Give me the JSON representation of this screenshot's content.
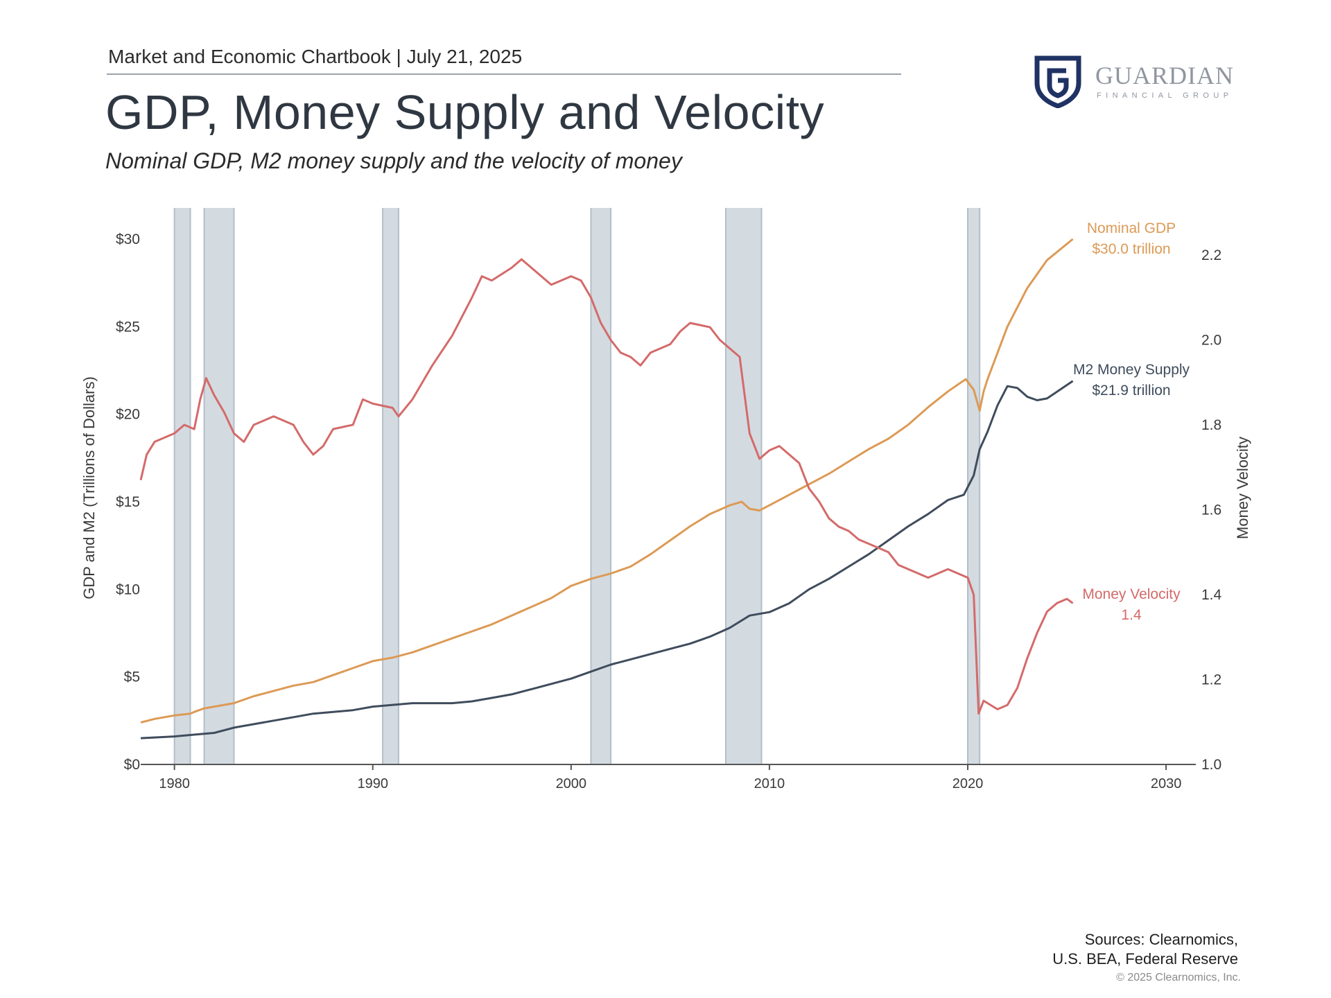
{
  "header": {
    "chartbook": "Market and Economic Chartbook | July 21, 2025",
    "title": "GDP, Money Supply and Velocity",
    "subtitle": "Nominal GDP, M2 money supply and the velocity of money"
  },
  "logo": {
    "name": "GUARDIAN",
    "tagline": "FINANCIAL GROUP"
  },
  "footer": {
    "sources_line1": "Sources: Clearnomics,",
    "sources_line2": "U.S. BEA, Federal Reserve",
    "copyright": "© 2025 Clearnomics, Inc."
  },
  "chart_data": {
    "type": "line",
    "xlim": [
      1978.3,
      2031.5
    ],
    "x_ticks": [
      1980,
      1990,
      2000,
      2010,
      2020,
      2030
    ],
    "ylabel_left": "GDP and M2 (Trillions of Dollars)",
    "ylabel_right": "Money Velocity",
    "ylim_left": [
      0,
      30
    ],
    "ylim_right": [
      1.0,
      2.2
    ],
    "y_ticks_left": [
      {
        "value": 0,
        "label": "$0"
      },
      {
        "value": 5,
        "label": "$5"
      },
      {
        "value": 10,
        "label": "$10"
      },
      {
        "value": 15,
        "label": "$15"
      },
      {
        "value": 20,
        "label": "$20"
      },
      {
        "value": 25,
        "label": "$25"
      },
      {
        "value": 30,
        "label": "$30"
      }
    ],
    "y_ticks_right": [
      {
        "value": 1.0,
        "label": "1.0"
      },
      {
        "value": 1.2,
        "label": "1.2"
      },
      {
        "value": 1.4,
        "label": "1.4"
      },
      {
        "value": 1.6,
        "label": "1.6"
      },
      {
        "value": 1.8,
        "label": "1.8"
      },
      {
        "value": 2.0,
        "label": "2.0"
      },
      {
        "value": 2.2,
        "label": "2.2"
      }
    ],
    "recessions": [
      [
        1980.0,
        1980.8
      ],
      [
        1981.5,
        1983.0
      ],
      [
        1990.5,
        1991.3
      ],
      [
        2001.0,
        2002.0
      ],
      [
        2007.8,
        2009.6
      ],
      [
        2020.0,
        2020.6
      ]
    ],
    "colors": {
      "gdp": "#dc9a55",
      "m2": "#3f4c5c",
      "velocity": "#d46a6a",
      "recession": "#d3dbe1",
      "recession_edge": "#b3bec7"
    },
    "series": [
      {
        "name": "Nominal GDP",
        "key": "gdp",
        "axis": "left",
        "label_lines": [
          "Nominal GDP",
          "$30.0 trillion"
        ],
        "points": [
          [
            1978.3,
            2.4
          ],
          [
            1979,
            2.6
          ],
          [
            1980,
            2.8
          ],
          [
            1980.8,
            2.9
          ],
          [
            1981,
            3.0
          ],
          [
            1981.5,
            3.2
          ],
          [
            1982,
            3.3
          ],
          [
            1983,
            3.5
          ],
          [
            1984,
            3.9
          ],
          [
            1985,
            4.2
          ],
          [
            1986,
            4.5
          ],
          [
            1987,
            4.7
          ],
          [
            1988,
            5.1
          ],
          [
            1989,
            5.5
          ],
          [
            1990,
            5.9
          ],
          [
            1991,
            6.1
          ],
          [
            1992,
            6.4
          ],
          [
            1993,
            6.8
          ],
          [
            1994,
            7.2
          ],
          [
            1995,
            7.6
          ],
          [
            1996,
            8.0
          ],
          [
            1997,
            8.5
          ],
          [
            1998,
            9.0
          ],
          [
            1999,
            9.5
          ],
          [
            2000,
            10.2
          ],
          [
            2001,
            10.6
          ],
          [
            2002,
            10.9
          ],
          [
            2003,
            11.3
          ],
          [
            2004,
            12.0
          ],
          [
            2005,
            12.8
          ],
          [
            2006,
            13.6
          ],
          [
            2007,
            14.3
          ],
          [
            2008,
            14.8
          ],
          [
            2008.6,
            15.0
          ],
          [
            2009,
            14.6
          ],
          [
            2009.5,
            14.5
          ],
          [
            2010,
            14.8
          ],
          [
            2011,
            15.4
          ],
          [
            2012,
            16.0
          ],
          [
            2013,
            16.6
          ],
          [
            2014,
            17.3
          ],
          [
            2015,
            18.0
          ],
          [
            2016,
            18.6
          ],
          [
            2017,
            19.4
          ],
          [
            2018,
            20.4
          ],
          [
            2019,
            21.3
          ],
          [
            2019.9,
            22.0
          ],
          [
            2020.3,
            21.4
          ],
          [
            2020.6,
            20.2
          ],
          [
            2020.8,
            21.3
          ],
          [
            2021,
            22.0
          ],
          [
            2022,
            25.0
          ],
          [
            2023,
            27.2
          ],
          [
            2024,
            28.8
          ],
          [
            2025.3,
            30.0
          ]
        ]
      },
      {
        "name": "M2 Money Supply",
        "key": "m2",
        "axis": "left",
        "label_lines": [
          "M2 Money Supply",
          "$21.9 trillion"
        ],
        "points": [
          [
            1978.3,
            1.5
          ],
          [
            1980,
            1.6
          ],
          [
            1981,
            1.7
          ],
          [
            1982,
            1.8
          ],
          [
            1983,
            2.1
          ],
          [
            1984,
            2.3
          ],
          [
            1985,
            2.5
          ],
          [
            1986,
            2.7
          ],
          [
            1987,
            2.9
          ],
          [
            1988,
            3.0
          ],
          [
            1989,
            3.1
          ],
          [
            1990,
            3.3
          ],
          [
            1991,
            3.4
          ],
          [
            1992,
            3.5
          ],
          [
            1993,
            3.5
          ],
          [
            1994,
            3.5
          ],
          [
            1995,
            3.6
          ],
          [
            1996,
            3.8
          ],
          [
            1997,
            4.0
          ],
          [
            1998,
            4.3
          ],
          [
            1999,
            4.6
          ],
          [
            2000,
            4.9
          ],
          [
            2001,
            5.3
          ],
          [
            2002,
            5.7
          ],
          [
            2003,
            6.0
          ],
          [
            2004,
            6.3
          ],
          [
            2005,
            6.6
          ],
          [
            2006,
            6.9
          ],
          [
            2007,
            7.3
          ],
          [
            2008,
            7.8
          ],
          [
            2009,
            8.5
          ],
          [
            2010,
            8.7
          ],
          [
            2011,
            9.2
          ],
          [
            2012,
            10.0
          ],
          [
            2013,
            10.6
          ],
          [
            2014,
            11.3
          ],
          [
            2015,
            12.0
          ],
          [
            2016,
            12.8
          ],
          [
            2017,
            13.6
          ],
          [
            2018,
            14.3
          ],
          [
            2019,
            15.1
          ],
          [
            2019.8,
            15.4
          ],
          [
            2020.3,
            16.5
          ],
          [
            2020.6,
            18.0
          ],
          [
            2021,
            19.0
          ],
          [
            2021.5,
            20.5
          ],
          [
            2022,
            21.6
          ],
          [
            2022.5,
            21.5
          ],
          [
            2023,
            21.0
          ],
          [
            2023.5,
            20.8
          ],
          [
            2024,
            20.9
          ],
          [
            2025.3,
            21.9
          ]
        ]
      },
      {
        "name": "Money Velocity",
        "key": "velocity",
        "axis": "right",
        "label_lines": [
          "Money Velocity",
          "1.4"
        ],
        "points": [
          [
            1978.3,
            1.67
          ],
          [
            1978.6,
            1.73
          ],
          [
            1979,
            1.76
          ],
          [
            1980,
            1.78
          ],
          [
            1980.5,
            1.8
          ],
          [
            1981,
            1.79
          ],
          [
            1981.3,
            1.86
          ],
          [
            1981.6,
            1.91
          ],
          [
            1982,
            1.87
          ],
          [
            1982.5,
            1.83
          ],
          [
            1983,
            1.78
          ],
          [
            1983.5,
            1.76
          ],
          [
            1984,
            1.8
          ],
          [
            1985,
            1.82
          ],
          [
            1986,
            1.8
          ],
          [
            1986.5,
            1.76
          ],
          [
            1987,
            1.73
          ],
          [
            1987.5,
            1.75
          ],
          [
            1988,
            1.79
          ],
          [
            1989,
            1.8
          ],
          [
            1989.5,
            1.86
          ],
          [
            1990,
            1.85
          ],
          [
            1991,
            1.84
          ],
          [
            1991.3,
            1.82
          ],
          [
            1992,
            1.86
          ],
          [
            1993,
            1.94
          ],
          [
            1994,
            2.01
          ],
          [
            1995,
            2.1
          ],
          [
            1995.5,
            2.15
          ],
          [
            1996,
            2.14
          ],
          [
            1997,
            2.17
          ],
          [
            1997.5,
            2.19
          ],
          [
            1998,
            2.17
          ],
          [
            1999,
            2.13
          ],
          [
            1999.5,
            2.14
          ],
          [
            2000,
            2.15
          ],
          [
            2000.5,
            2.14
          ],
          [
            2001,
            2.1
          ],
          [
            2001.5,
            2.04
          ],
          [
            2002,
            2.0
          ],
          [
            2002.5,
            1.97
          ],
          [
            2003,
            1.96
          ],
          [
            2003.5,
            1.94
          ],
          [
            2004,
            1.97
          ],
          [
            2005,
            1.99
          ],
          [
            2005.5,
            2.02
          ],
          [
            2006,
            2.04
          ],
          [
            2007,
            2.03
          ],
          [
            2007.5,
            2.0
          ],
          [
            2008,
            1.98
          ],
          [
            2008.5,
            1.96
          ],
          [
            2009,
            1.78
          ],
          [
            2009.5,
            1.72
          ],
          [
            2010,
            1.74
          ],
          [
            2010.5,
            1.75
          ],
          [
            2011,
            1.73
          ],
          [
            2011.5,
            1.71
          ],
          [
            2012,
            1.65
          ],
          [
            2012.5,
            1.62
          ],
          [
            2013,
            1.58
          ],
          [
            2013.5,
            1.56
          ],
          [
            2014,
            1.55
          ],
          [
            2014.5,
            1.53
          ],
          [
            2015,
            1.52
          ],
          [
            2015.5,
            1.51
          ],
          [
            2016,
            1.5
          ],
          [
            2016.5,
            1.47
          ],
          [
            2017,
            1.46
          ],
          [
            2018,
            1.44
          ],
          [
            2018.5,
            1.45
          ],
          [
            2019,
            1.46
          ],
          [
            2019.5,
            1.45
          ],
          [
            2020,
            1.44
          ],
          [
            2020.3,
            1.4
          ],
          [
            2020.55,
            1.12
          ],
          [
            2020.8,
            1.15
          ],
          [
            2021.5,
            1.13
          ],
          [
            2022,
            1.14
          ],
          [
            2022.5,
            1.18
          ],
          [
            2023,
            1.25
          ],
          [
            2023.5,
            1.31
          ],
          [
            2024,
            1.36
          ],
          [
            2024.5,
            1.38
          ],
          [
            2025,
            1.39
          ],
          [
            2025.3,
            1.38
          ]
        ]
      }
    ]
  }
}
